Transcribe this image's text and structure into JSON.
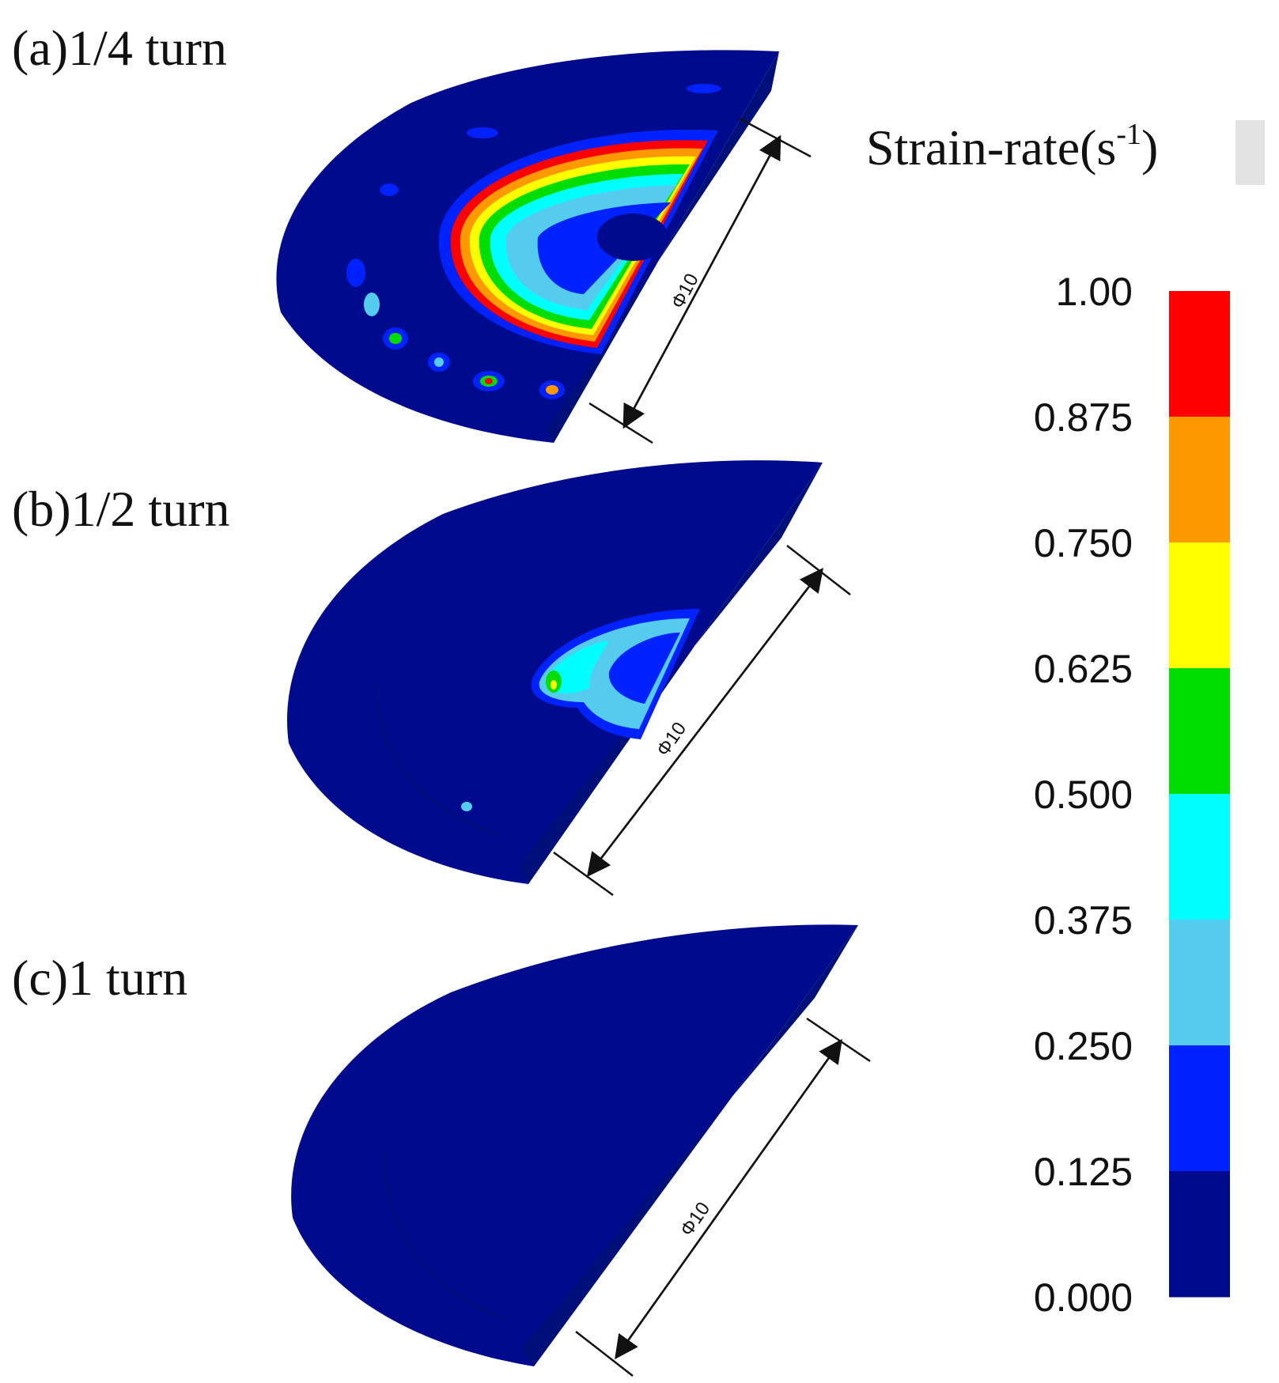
{
  "panels": [
    {
      "label": "(a)1/4 turn",
      "dimension": "Φ10"
    },
    {
      "label": "(b)1/2 turn",
      "dimension": "Φ10"
    },
    {
      "label": "(c)1 turn",
      "dimension": "Φ10"
    }
  ],
  "legend": {
    "title_main": "Strain-rate(s",
    "title_sup": "-1",
    "title_close": ")",
    "ticks": [
      "1.00",
      "0.875",
      "0.750",
      "0.625",
      "0.500",
      "0.375",
      "0.250",
      "0.125",
      "0.000"
    ],
    "colors": [
      "#ff0000",
      "#ff9900",
      "#ffff00",
      "#00dd00",
      "#00ffff",
      "#55ccee",
      "#0022ff",
      "#000a8c"
    ]
  },
  "palette": {
    "base": "#000a8c",
    "edge": "#00107a"
  }
}
